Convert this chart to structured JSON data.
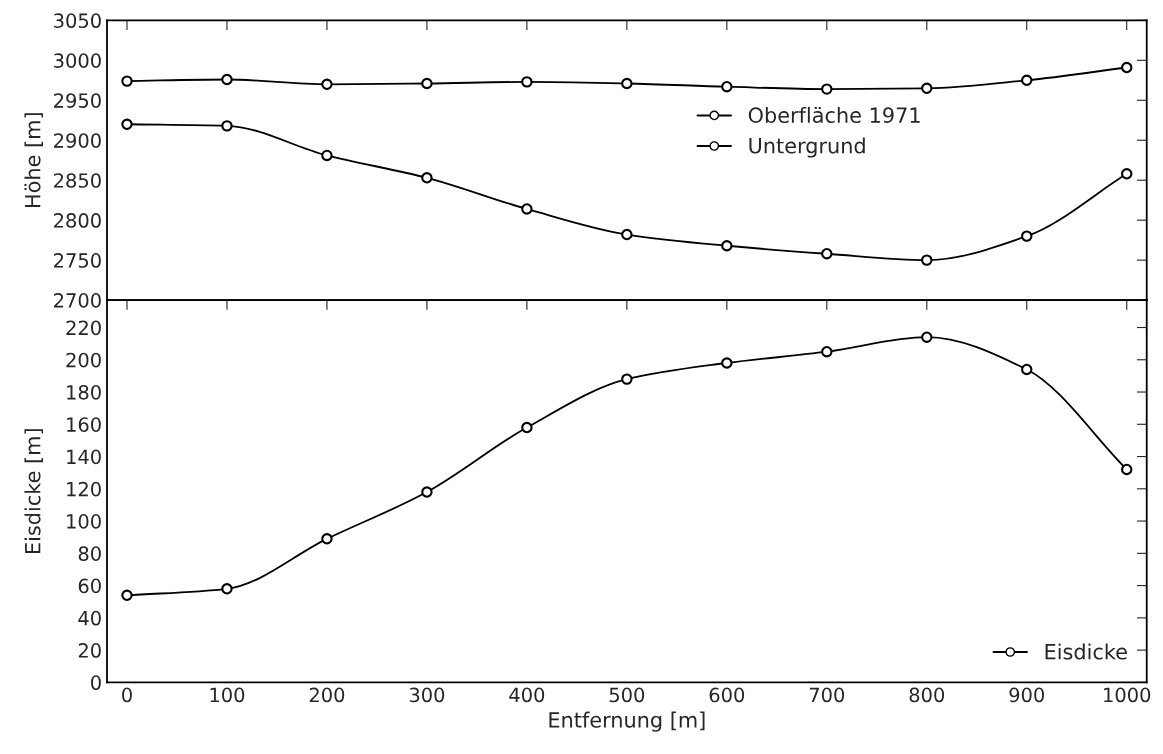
{
  "chart_data": [
    {
      "type": "line",
      "ylabel": "Höhe [m]",
      "x": [
        0,
        100,
        200,
        300,
        400,
        500,
        600,
        700,
        800,
        900,
        1000
      ],
      "series": [
        {
          "name": "Oberfläche 1971",
          "color": "#000000",
          "values": [
            2974,
            2976,
            2970,
            2971,
            2973,
            2971,
            2967,
            2964,
            2965,
            2975,
            2991
          ]
        },
        {
          "name": "Untergrund",
          "color": "#000000",
          "values": [
            2920,
            2918,
            2881,
            2853,
            2814,
            2782,
            2768,
            2758,
            2750,
            2780,
            2858
          ]
        }
      ],
      "xlim": [
        -20,
        1020
      ],
      "xticks": [
        0,
        100,
        200,
        300,
        400,
        500,
        600,
        700,
        800,
        900,
        1000
      ],
      "ylim": [
        2700,
        3050
      ],
      "yticks": [
        2700,
        2750,
        2800,
        2850,
        2900,
        2950,
        3000,
        3050
      ],
      "tick_labels": "y",
      "marker": "circle",
      "grid": false,
      "legend": "right"
    },
    {
      "type": "line",
      "xlabel": "Entfernung [m]",
      "ylabel": "Eisdicke [m]",
      "x": [
        0,
        100,
        200,
        300,
        400,
        500,
        600,
        700,
        800,
        900,
        1000
      ],
      "series": [
        {
          "name": "Eisdicke",
          "color": "#000000",
          "values": [
            54,
            58,
            89,
            118,
            158,
            188,
            198,
            205,
            214,
            194,
            132
          ]
        }
      ],
      "xlim": [
        -20,
        1020
      ],
      "xticks": [
        0,
        100,
        200,
        300,
        400,
        500,
        600,
        700,
        800,
        900,
        1000
      ],
      "ylim": [
        0,
        237
      ],
      "yticks": [
        0,
        20,
        40,
        60,
        80,
        100,
        120,
        140,
        160,
        180,
        200,
        220
      ],
      "marker": "circle",
      "grid": false,
      "legend": "bottom right"
    }
  ]
}
